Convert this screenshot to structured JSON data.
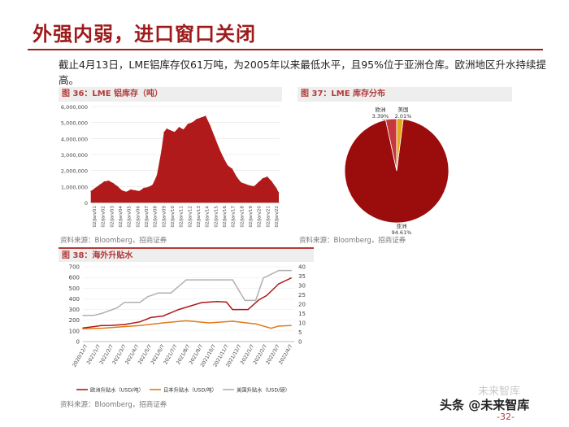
{
  "slide": {
    "title": "外强内弱，进口窗口关闭",
    "intro": "截止4月13日，LME铝库存仅61万吨，为2005年以来最低水平，且95%位于亚洲仓库。欧洲地区升水持续提高。",
    "page_number": "-32-",
    "watermark": "头条 @未来智库",
    "watermark_ghost": "未来智库"
  },
  "colors": {
    "brand_red": "#9e1b1b",
    "series_red": "#b01a1a",
    "asia_red": "#9b0d0d",
    "europe_red": "#c8373c",
    "us_gold": "#e6a91a",
    "japan_orange": "#e07b1a",
    "us_gray": "#b0b0b0"
  },
  "fig36": {
    "caption": "图 36：LME 铝库存（吨）",
    "source": "资料来源：Bloomberg，招商证券"
  },
  "fig37": {
    "caption": "图 37：LME 库存分布",
    "source": "资料来源：Bloomberg，招商证券"
  },
  "fig38": {
    "caption": "图 38：海外升贴水",
    "source": "资料来源：Bloomberg，招商证券"
  },
  "chart_data": [
    {
      "id": "fig36",
      "type": "area",
      "title": "LME 铝库存（吨）",
      "ylim": [
        0,
        6000000
      ],
      "y_ticks": [
        "6,000,000",
        "5,000,000",
        "4,000,000",
        "3,000,000",
        "2,000,000",
        "1,000,000",
        "0"
      ],
      "x_tick_labels": [
        "02/Jan/01",
        "02/Jan/02",
        "02/Jan/03",
        "02/Jan/04",
        "02/Jan/05",
        "02/Jan/06",
        "02/Jan/07",
        "02/Jan/08",
        "02/Jan/09",
        "02/Jan/10",
        "02/Jan/11",
        "02/Jan/12",
        "02/Jan/13",
        "02/Jan/14",
        "02/Jan/15",
        "02/Jan/16",
        "02/Jan/17",
        "02/Jan/18",
        "02/Jan/19",
        "02/Jan/20",
        "02/Jan/21",
        "02/Jan/22"
      ],
      "x": [
        2001.0,
        2001.5,
        2002.0,
        2002.5,
        2003.0,
        2003.5,
        2004.0,
        2004.5,
        2005.0,
        2005.5,
        2006.0,
        2006.5,
        2007.0,
        2007.5,
        2008.0,
        2008.5,
        2009.0,
        2009.3,
        2009.6,
        2010.0,
        2010.5,
        2011.0,
        2011.5,
        2012.0,
        2012.5,
        2013.0,
        2013.5,
        2014.0,
        2014.5,
        2015.0,
        2015.5,
        2016.0,
        2016.5,
        2017.0,
        2017.5,
        2018.0,
        2018.5,
        2019.0,
        2019.5,
        2020.0,
        2020.5,
        2021.0,
        2021.5,
        2022.0,
        2022.28
      ],
      "values": [
        700000,
        900000,
        1100000,
        1300000,
        1350000,
        1200000,
        1000000,
        750000,
        650000,
        800000,
        750000,
        700000,
        900000,
        950000,
        1100000,
        1700000,
        3200000,
        4400000,
        4600000,
        4500000,
        4400000,
        4700000,
        4550000,
        4900000,
        5000000,
        5200000,
        5300000,
        5400000,
        4800000,
        4100000,
        3400000,
        2800000,
        2300000,
        2100000,
        1600000,
        1250000,
        1150000,
        1050000,
        1000000,
        1250000,
        1500000,
        1600000,
        1300000,
        900000,
        610000
      ]
    },
    {
      "id": "fig37",
      "type": "pie",
      "title": "LME 库存分布",
      "labels": [
        "亚洲",
        "欧洲",
        "美国"
      ],
      "label_texts": [
        "亚洲\n94.61%",
        "欧洲\n3.39%",
        "美国\n2.01%"
      ],
      "values": [
        94.61,
        3.39,
        2.01
      ],
      "units": "%"
    },
    {
      "id": "fig38",
      "type": "line",
      "title": "海外升贴水",
      "x_tick_labels": [
        "2020/12/7",
        "2021/1/7",
        "2021/2/7",
        "2021/3/7",
        "2021/4/7",
        "2021/5/7",
        "2021/6/7",
        "2021/7/7",
        "2021/8/7",
        "2021/9/7",
        "2021/10/7",
        "2021/11/7",
        "2021/12/7",
        "2022/1/7",
        "2022/2/7",
        "2022/3/7",
        "2022/4/7"
      ],
      "y_left": {
        "ylim": [
          0,
          700
        ],
        "ticks": [
          700,
          600,
          500,
          400,
          300,
          200,
          100,
          0
        ]
      },
      "y_right": {
        "ylim": [
          0,
          40
        ],
        "ticks": [
          40,
          35,
          30,
          25,
          20,
          15,
          10,
          5,
          0
        ]
      },
      "series": [
        {
          "name": "欧洲升贴水（USD/吨）",
          "axis": "left",
          "x": [
            2020.93,
            2021.0,
            2021.05,
            2021.1,
            2021.2,
            2021.3,
            2021.37,
            2021.45,
            2021.55,
            2021.62,
            2021.7,
            2021.8,
            2021.86,
            2021.9,
            2022.0,
            2022.07,
            2022.12,
            2022.2,
            2022.28
          ],
          "values": [
            128,
            140,
            150,
            150,
            160,
            185,
            225,
            240,
            300,
            330,
            365,
            375,
            370,
            300,
            300,
            390,
            430,
            540,
            595
          ]
        },
        {
          "name": "日本升贴水（USD/吨）",
          "axis": "left",
          "x": [
            2020.93,
            2021.05,
            2021.15,
            2021.3,
            2021.45,
            2021.6,
            2021.75,
            2021.9,
            2022.05,
            2022.15,
            2022.2,
            2022.28
          ],
          "values": [
            120,
            125,
            135,
            150,
            175,
            195,
            175,
            190,
            165,
            125,
            145,
            150
          ]
        },
        {
          "name": "美国升贴水（USD/磅）",
          "axis": "right",
          "x": [
            2020.93,
            2021.0,
            2021.05,
            2021.15,
            2021.2,
            2021.3,
            2021.35,
            2021.42,
            2021.5,
            2021.6,
            2021.72,
            2021.8,
            2021.9,
            2021.98,
            2022.05,
            2022.1,
            2022.2,
            2022.28
          ],
          "values": [
            14,
            14,
            15,
            18,
            21,
            21,
            24,
            26,
            26,
            33,
            33,
            33,
            33,
            22,
            22,
            34,
            38,
            38
          ]
        }
      ]
    }
  ]
}
